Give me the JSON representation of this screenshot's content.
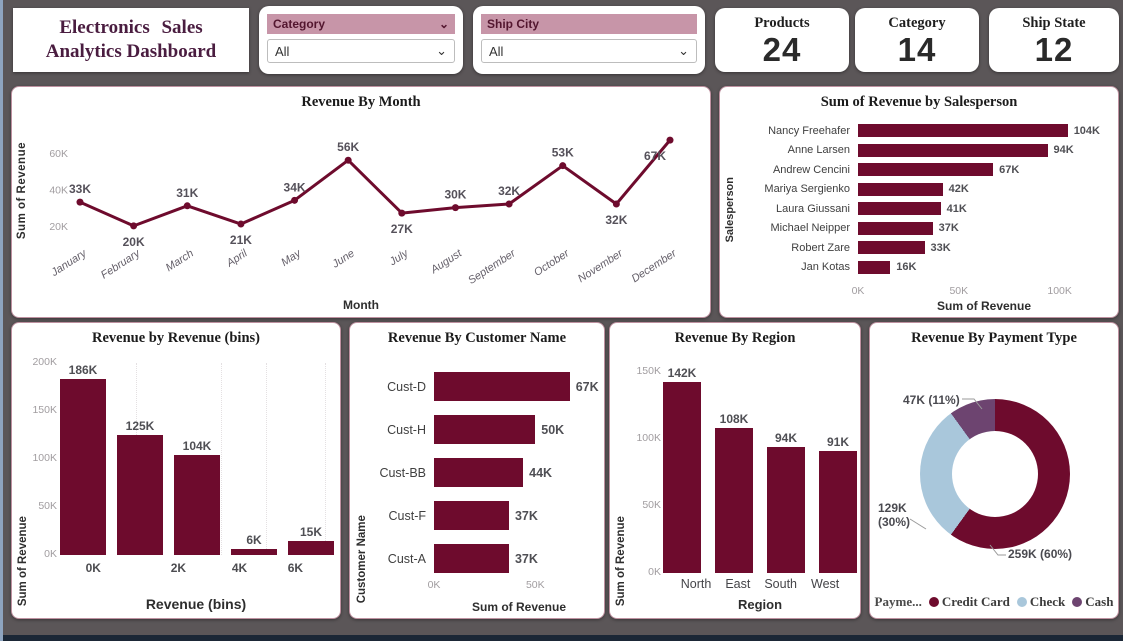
{
  "title_card": {
    "line1": "Electronics Sales",
    "line2": "Analytics Dashboard"
  },
  "slicers": [
    {
      "label": "Category",
      "value": "All"
    },
    {
      "label": "Ship City",
      "value": "All"
    }
  ],
  "kpis": [
    {
      "label": "Products",
      "value": "24"
    },
    {
      "label": "Category",
      "value": "14"
    },
    {
      "label": "Ship State",
      "value": "12"
    }
  ],
  "colors": {
    "maroon": "#6e0b2d",
    "check_blue": "#a9c7db",
    "cash_purple": "#6d4470",
    "slicer_header": "#c795a8",
    "page_bg": "#5b5658"
  },
  "chart_data": [
    {
      "id": "revenue_by_month",
      "type": "line",
      "title": "Revenue By Month",
      "xlabel": "Month",
      "ylabel": "Sum of Revenue",
      "categories": [
        "January",
        "February",
        "March",
        "April",
        "May",
        "June",
        "July",
        "August",
        "September",
        "October",
        "November",
        "December"
      ],
      "values": [
        33,
        20,
        31,
        21,
        34,
        56,
        27,
        30,
        32,
        53,
        32,
        67
      ],
      "labels": [
        "33K",
        "20K",
        "31K",
        "21K",
        "34K",
        "56K",
        "27K",
        "30K",
        "32K",
        "53K",
        "32K",
        "67K"
      ],
      "unit": "K",
      "yticks": [
        "20K",
        "40K",
        "60K"
      ],
      "ytick_values": [
        20,
        40,
        60
      ],
      "ylim": [
        15,
        72
      ],
      "grid": false,
      "legend": "none"
    },
    {
      "id": "revenue_by_salesperson",
      "type": "bar-horizontal",
      "title": "Sum of Revenue by Salesperson",
      "xlabel": "Sum of Revenue",
      "ylabel": "Salesperson",
      "categories": [
        "Nancy Freehafer",
        "Anne Larsen",
        "Andrew Cencini",
        "Mariya Sergienko",
        "Laura Giussani",
        "Michael Neipper",
        "Robert Zare",
        "Jan Kotas"
      ],
      "values": [
        104,
        94,
        67,
        42,
        41,
        37,
        33,
        16
      ],
      "labels": [
        "104K",
        "94K",
        "67K",
        "42K",
        "41K",
        "37K",
        "33K",
        "16K"
      ],
      "unit": "K",
      "xticks": [
        "0K",
        "50K",
        "100K"
      ],
      "xtick_values": [
        0,
        50,
        100
      ],
      "xlim": [
        0,
        123
      ],
      "grid": false,
      "legend": "none"
    },
    {
      "id": "revenue_by_revenue_bins",
      "type": "bar",
      "title": "Revenue by Revenue (bins)",
      "xlabel": "Revenue (bins)",
      "ylabel": "Sum of Revenue",
      "values": [
        186,
        125,
        104,
        6,
        15
      ],
      "labels": [
        "186K",
        "125K",
        "104K",
        "6K",
        "15K"
      ],
      "unit": "K",
      "xticks": [
        "0K",
        "2K",
        "4K",
        "6K"
      ],
      "yticks": [
        "0K",
        "50K",
        "100K",
        "150K",
        "200K"
      ],
      "ytick_values": [
        0,
        50,
        100,
        150,
        200
      ],
      "ylim": [
        0,
        200
      ],
      "grid": false,
      "legend": "none"
    },
    {
      "id": "revenue_by_customer_name",
      "type": "bar-horizontal",
      "title": "Revenue By Customer Name",
      "xlabel": "Sum of Revenue",
      "ylabel": "Customer Name",
      "categories": [
        "Cust-D",
        "Cust-H",
        "Cust-BB",
        "Cust-F",
        "Cust-A"
      ],
      "values": [
        67,
        50,
        44,
        37,
        37
      ],
      "labels": [
        "67K",
        "50K",
        "44K",
        "37K",
        "37K"
      ],
      "unit": "K",
      "xticks": [
        "0K",
        "50K"
      ],
      "xtick_values": [
        0,
        50
      ],
      "xlim": [
        0,
        78
      ],
      "grid": false,
      "legend": "none"
    },
    {
      "id": "revenue_by_region",
      "type": "bar",
      "title": "Revenue By Region",
      "xlabel": "Region",
      "ylabel": "Sum of Revenue",
      "categories": [
        "North",
        "East",
        "South",
        "West"
      ],
      "values": [
        142,
        108,
        94,
        91
      ],
      "labels": [
        "142K",
        "108K",
        "94K",
        "91K"
      ],
      "unit": "K",
      "yticks": [
        "0K",
        "50K",
        "100K",
        "150K"
      ],
      "ytick_values": [
        0,
        50,
        100,
        150
      ],
      "ylim": [
        0,
        155
      ],
      "grid": false,
      "legend": "none"
    },
    {
      "id": "revenue_by_payment_type",
      "type": "pie",
      "title": "Revenue By Payment Type",
      "legend_title": "Payme...",
      "legend": "bottom",
      "slices": [
        {
          "name": "Credit Card",
          "value": 259,
          "pct": 60,
          "label": "259K (60%)",
          "color": "#6e0b2d"
        },
        {
          "name": "Check",
          "value": 129,
          "pct": 30,
          "label": "129K\n(30%)",
          "color": "#a9c7db"
        },
        {
          "name": "Cash",
          "value": 47,
          "pct": 11,
          "label": "47K (11%)",
          "color": "#6d4470"
        }
      ]
    }
  ]
}
